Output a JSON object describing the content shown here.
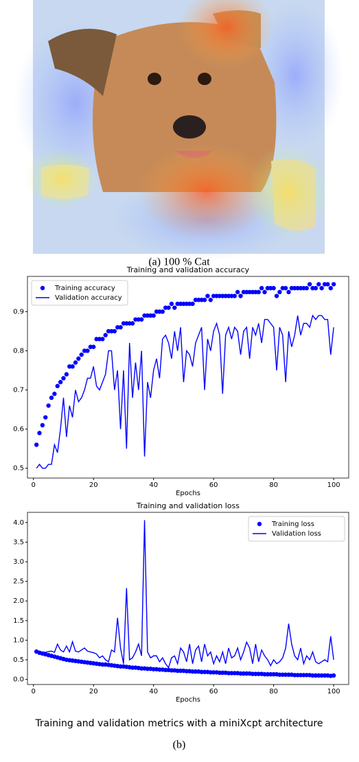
{
  "figure": {
    "caption_a": "(a) 100 % Cat",
    "caption": "Training and validation metrics with a miniXcpt architecture",
    "caption_b": "(b)"
  },
  "chart_data": [
    {
      "type": "line",
      "title": "Training and validation accuracy",
      "xlabel": "Epochs",
      "legend": "upper left",
      "x": [
        1,
        2,
        3,
        4,
        5,
        6,
        7,
        8,
        9,
        10,
        11,
        12,
        13,
        14,
        15,
        16,
        17,
        18,
        19,
        20,
        21,
        22,
        23,
        24,
        25,
        26,
        27,
        28,
        29,
        30,
        31,
        32,
        33,
        34,
        35,
        36,
        37,
        38,
        39,
        40,
        41,
        42,
        43,
        44,
        45,
        46,
        47,
        48,
        49,
        50,
        51,
        52,
        53,
        54,
        55,
        56,
        57,
        58,
        59,
        60,
        61,
        62,
        63,
        64,
        65,
        66,
        67,
        68,
        69,
        70,
        71,
        72,
        73,
        74,
        75,
        76,
        77,
        78,
        79,
        80,
        81,
        82,
        83,
        84,
        85,
        86,
        87,
        88,
        89,
        90,
        91,
        92,
        93,
        94,
        95,
        96,
        97,
        98,
        99,
        100
      ],
      "xlim": [
        -2,
        105
      ],
      "xticks": [
        0,
        20,
        40,
        60,
        80,
        100
      ],
      "ylim": [
        0.475,
        0.99
      ],
      "yticks": [
        0.5,
        0.6,
        0.7,
        0.8,
        0.9
      ],
      "series": [
        {
          "name": "Training accuracy",
          "color": "#0000ff",
          "style": "dots",
          "values": [
            0.56,
            0.59,
            0.61,
            0.63,
            0.66,
            0.68,
            0.69,
            0.71,
            0.72,
            0.73,
            0.74,
            0.76,
            0.76,
            0.77,
            0.78,
            0.79,
            0.8,
            0.8,
            0.81,
            0.81,
            0.83,
            0.83,
            0.83,
            0.84,
            0.85,
            0.85,
            0.85,
            0.86,
            0.86,
            0.87,
            0.87,
            0.87,
            0.87,
            0.88,
            0.88,
            0.88,
            0.89,
            0.89,
            0.89,
            0.89,
            0.9,
            0.9,
            0.9,
            0.91,
            0.91,
            0.92,
            0.91,
            0.92,
            0.92,
            0.92,
            0.92,
            0.92,
            0.92,
            0.93,
            0.93,
            0.93,
            0.93,
            0.94,
            0.93,
            0.94,
            0.94,
            0.94,
            0.94,
            0.94,
            0.94,
            0.94,
            0.94,
            0.95,
            0.94,
            0.95,
            0.95,
            0.95,
            0.95,
            0.95,
            0.95,
            0.96,
            0.95,
            0.96,
            0.96,
            0.96,
            0.94,
            0.95,
            0.96,
            0.96,
            0.95,
            0.96,
            0.96,
            0.96,
            0.96,
            0.96,
            0.96,
            0.97,
            0.96,
            0.96,
            0.97,
            0.96,
            0.97,
            0.97,
            0.96,
            0.97
          ]
        },
        {
          "name": "Validation accuracy",
          "color": "#0000ff",
          "style": "line",
          "values": [
            0.5,
            0.51,
            0.5,
            0.5,
            0.51,
            0.51,
            0.56,
            0.54,
            0.6,
            0.68,
            0.58,
            0.66,
            0.63,
            0.7,
            0.67,
            0.68,
            0.7,
            0.73,
            0.73,
            0.76,
            0.71,
            0.7,
            0.72,
            0.74,
            0.8,
            0.8,
            0.7,
            0.75,
            0.6,
            0.75,
            0.55,
            0.82,
            0.68,
            0.77,
            0.7,
            0.8,
            0.53,
            0.72,
            0.68,
            0.75,
            0.78,
            0.73,
            0.83,
            0.84,
            0.82,
            0.78,
            0.85,
            0.8,
            0.86,
            0.72,
            0.8,
            0.79,
            0.76,
            0.82,
            0.84,
            0.86,
            0.7,
            0.83,
            0.8,
            0.85,
            0.87,
            0.84,
            0.69,
            0.84,
            0.86,
            0.83,
            0.86,
            0.85,
            0.79,
            0.85,
            0.86,
            0.78,
            0.86,
            0.84,
            0.87,
            0.82,
            0.88,
            0.88,
            0.87,
            0.86,
            0.75,
            0.86,
            0.84,
            0.72,
            0.85,
            0.81,
            0.84,
            0.89,
            0.84,
            0.87,
            0.87,
            0.86,
            0.89,
            0.88,
            0.89,
            0.89,
            0.88,
            0.88,
            0.79,
            0.86
          ]
        }
      ]
    },
    {
      "type": "line",
      "title": "Training and validation loss",
      "xlabel": "Epochs",
      "legend": "upper right",
      "x": [
        1,
        2,
        3,
        4,
        5,
        6,
        7,
        8,
        9,
        10,
        11,
        12,
        13,
        14,
        15,
        16,
        17,
        18,
        19,
        20,
        21,
        22,
        23,
        24,
        25,
        26,
        27,
        28,
        29,
        30,
        31,
        32,
        33,
        34,
        35,
        36,
        37,
        38,
        39,
        40,
        41,
        42,
        43,
        44,
        45,
        46,
        47,
        48,
        49,
        50,
        51,
        52,
        53,
        54,
        55,
        56,
        57,
        58,
        59,
        60,
        61,
        62,
        63,
        64,
        65,
        66,
        67,
        68,
        69,
        70,
        71,
        72,
        73,
        74,
        75,
        76,
        77,
        78,
        79,
        80,
        81,
        82,
        83,
        84,
        85,
        86,
        87,
        88,
        89,
        90,
        91,
        92,
        93,
        94,
        95,
        96,
        97,
        98,
        99,
        100
      ],
      "xlim": [
        -2,
        105
      ],
      "xticks": [
        0,
        20,
        40,
        60,
        80,
        100
      ],
      "ylim": [
        -0.13,
        4.26
      ],
      "yticks": [
        {
          "value": 0,
          "label": "0.0"
        },
        0.5,
        {
          "value": 1,
          "label": "1.0"
        },
        1.5,
        {
          "value": 2,
          "label": "2.0"
        },
        2.5,
        {
          "value": 3,
          "label": "3.0"
        },
        3.5,
        {
          "value": 4,
          "label": "4.0"
        }
      ],
      "series": [
        {
          "name": "Training loss",
          "color": "#0000ff",
          "style": "dots",
          "values": [
            0.71,
            0.68,
            0.66,
            0.64,
            0.62,
            0.6,
            0.58,
            0.56,
            0.54,
            0.52,
            0.5,
            0.49,
            0.48,
            0.47,
            0.46,
            0.45,
            0.44,
            0.43,
            0.42,
            0.41,
            0.4,
            0.39,
            0.38,
            0.38,
            0.37,
            0.36,
            0.35,
            0.34,
            0.33,
            0.33,
            0.32,
            0.31,
            0.3,
            0.3,
            0.29,
            0.28,
            0.28,
            0.27,
            0.27,
            0.26,
            0.26,
            0.25,
            0.25,
            0.24,
            0.24,
            0.23,
            0.23,
            0.22,
            0.22,
            0.22,
            0.21,
            0.21,
            0.2,
            0.2,
            0.2,
            0.19,
            0.19,
            0.19,
            0.18,
            0.18,
            0.18,
            0.17,
            0.17,
            0.17,
            0.16,
            0.16,
            0.16,
            0.16,
            0.15,
            0.15,
            0.15,
            0.15,
            0.14,
            0.14,
            0.14,
            0.14,
            0.13,
            0.13,
            0.13,
            0.13,
            0.13,
            0.12,
            0.12,
            0.12,
            0.12,
            0.12,
            0.11,
            0.11,
            0.11,
            0.11,
            0.11,
            0.11,
            0.1,
            0.1,
            0.1,
            0.1,
            0.1,
            0.1,
            0.09,
            0.1
          ]
        },
        {
          "name": "Validation loss",
          "color": "#0000ff",
          "style": "line",
          "values": [
            0.7,
            0.68,
            0.7,
            0.69,
            0.71,
            0.72,
            0.69,
            0.9,
            0.75,
            0.7,
            0.85,
            0.7,
            0.96,
            0.72,
            0.7,
            0.75,
            0.8,
            0.72,
            0.7,
            0.68,
            0.65,
            0.55,
            0.6,
            0.5,
            0.45,
            0.75,
            0.7,
            1.57,
            0.8,
            0.4,
            2.33,
            0.5,
            0.55,
            0.7,
            0.9,
            0.6,
            4.06,
            0.7,
            0.55,
            0.6,
            0.6,
            0.45,
            0.55,
            0.4,
            0.3,
            0.55,
            0.6,
            0.4,
            0.8,
            0.7,
            0.45,
            0.9,
            0.4,
            0.75,
            0.85,
            0.45,
            0.9,
            0.6,
            0.7,
            0.4,
            0.6,
            0.45,
            0.7,
            0.4,
            0.8,
            0.55,
            0.6,
            0.8,
            0.5,
            0.7,
            0.95,
            0.8,
            0.4,
            0.9,
            0.45,
            0.75,
            0.6,
            0.5,
            0.35,
            0.5,
            0.4,
            0.45,
            0.55,
            0.8,
            1.42,
            0.9,
            0.6,
            0.5,
            0.8,
            0.4,
            0.6,
            0.5,
            0.7,
            0.45,
            0.4,
            0.45,
            0.5,
            0.45,
            1.1,
            0.5
          ]
        }
      ]
    }
  ]
}
